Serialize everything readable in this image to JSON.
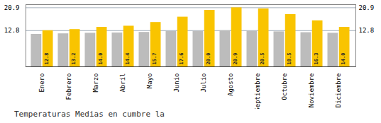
{
  "chart_data": {
    "type": "bar",
    "title": "Temperaturas Medias en cumbre la",
    "categories": [
      "Enero",
      "Febrero",
      "Marzo",
      "Abril",
      "Mayo",
      "Junio",
      "Julio",
      "Agosto",
      "Septiembre",
      "Octubre",
      "Noviembre",
      "Diciembre"
    ],
    "series": [
      {
        "color": "#BCBCBC",
        "values": [
          11.5,
          11.7,
          11.9,
          12.0,
          12.2,
          12.5,
          12.6,
          12.8,
          12.6,
          12.4,
          12.1,
          11.9
        ]
      },
      {
        "color": "#F9C400",
        "values": [
          12.8,
          13.2,
          14.0,
          14.4,
          15.7,
          17.6,
          20.0,
          20.9,
          20.5,
          18.5,
          16.3,
          14.0
        ],
        "value_labels": [
          "12.8",
          "13.2",
          "14.0",
          "14.4",
          "15.7",
          "17.6",
          "20.0",
          "20.9",
          "20.5",
          "18.5",
          "16.3",
          "14.0"
        ],
        "data_labels": true
      }
    ],
    "ylim": [
      0,
      22.0
    ],
    "yticks": [
      12.8,
      20.9
    ],
    "y2lim": [
      0,
      22.0
    ],
    "y2ticks": [
      12.8,
      20.9
    ],
    "grid": true
  }
}
